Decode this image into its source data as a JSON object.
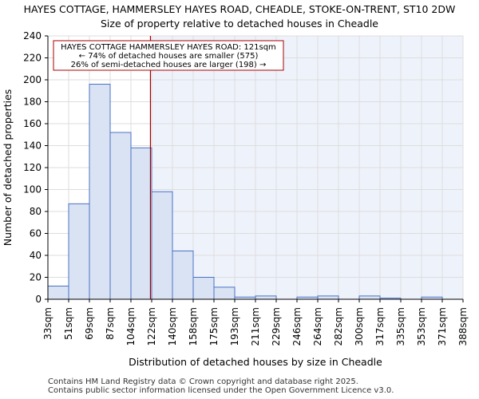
{
  "chart_data": {
    "type": "bar",
    "title": "HAYES COTTAGE, HAMMERSLEY HAYES ROAD, CHEADLE, STOKE-ON-TRENT, ST10 2DW",
    "subtitle": "Size of property relative to detached houses in Cheadle",
    "xlabel": "Distribution of detached houses by size in Cheadle",
    "ylabel": "Number of detached properties",
    "ylim": [
      0,
      240
    ],
    "yticks": [
      0,
      20,
      40,
      60,
      80,
      100,
      120,
      140,
      160,
      180,
      200,
      220,
      240
    ],
    "bin_edges": [
      "33sqm",
      "51sqm",
      "69sqm",
      "87sqm",
      "104sqm",
      "122sqm",
      "140sqm",
      "158sqm",
      "175sqm",
      "193sqm",
      "211sqm",
      "229sqm",
      "246sqm",
      "264sqm",
      "282sqm",
      "300sqm",
      "317sqm",
      "335sqm",
      "353sqm",
      "371sqm",
      "388sqm"
    ],
    "values": [
      12,
      87,
      196,
      152,
      138,
      98,
      44,
      20,
      11,
      2,
      3,
      0,
      2,
      3,
      0,
      3,
      1,
      0,
      2,
      0
    ],
    "property_marker": {
      "value_sqm": 121,
      "position_bins": 4.94
    },
    "annotation": [
      "HAYES COTTAGE HAMMERSLEY HAYES ROAD: 121sqm",
      "← 74% of detached houses are smaller (575)",
      "26% of semi-detached houses are larger (198) →"
    ],
    "grid": true
  },
  "colors": {
    "bar_fill": "#dae3f3",
    "bar_stroke": "#4a72c4",
    "marker": "#aa0000",
    "right_bg": "#eef2fb",
    "grid": "#dddddd"
  },
  "footer": {
    "line1": "Contains HM Land Registry data © Crown copyright and database right 2025.",
    "line2": "Contains public sector information licensed under the Open Government Licence v3.0."
  }
}
